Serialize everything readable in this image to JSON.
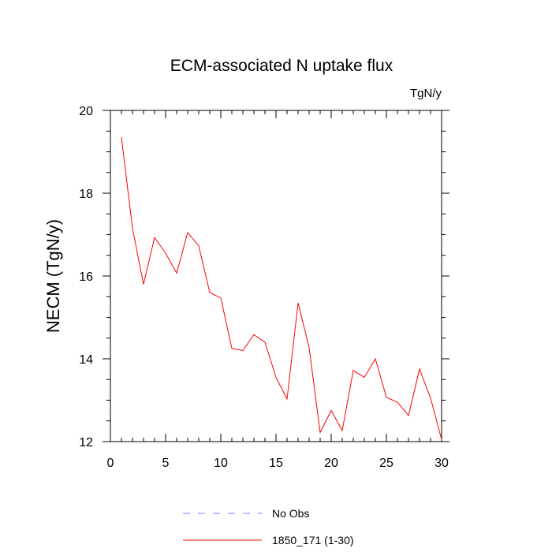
{
  "chart_data": {
    "type": "line",
    "title": "ECM-associated N uptake flux",
    "units_label": "TgN/y",
    "xlabel": "",
    "ylabel": "NECM  (TgN/y)",
    "xlim": [
      0,
      30
    ],
    "ylim": [
      12,
      20
    ],
    "x_major_ticks": [
      0,
      5,
      10,
      15,
      20,
      25,
      30
    ],
    "x_tick_labels": [
      "0",
      "5",
      "10",
      "15",
      "20",
      "25",
      "30"
    ],
    "x_minor_ticks": [
      1,
      2,
      3,
      4,
      6,
      7,
      8,
      9,
      11,
      12,
      13,
      14,
      16,
      17,
      18,
      19,
      21,
      22,
      23,
      24,
      26,
      27,
      28,
      29
    ],
    "y_major_ticks": [
      12,
      14,
      16,
      18,
      20
    ],
    "y_tick_labels": [
      "12",
      "14",
      "16",
      "18",
      "20"
    ],
    "y_minor_ticks": [
      12.5,
      13,
      13.5,
      14.5,
      15,
      15.5,
      16.5,
      17,
      17.5,
      18.5,
      19,
      19.5
    ],
    "grid": false,
    "legend_position": "bottom-center",
    "series": [
      {
        "name": "No Obs",
        "color": "#7a7aff",
        "style": "dashed",
        "x": [],
        "values": []
      },
      {
        "name": "1850_171 (1-30)",
        "color": "#ff0000",
        "style": "solid",
        "x": [
          1,
          2,
          3,
          4,
          5,
          6,
          7,
          8,
          9,
          10,
          11,
          12,
          13,
          14,
          15,
          16,
          17,
          18,
          19,
          20,
          21,
          22,
          23,
          24,
          25,
          26,
          27,
          28,
          29,
          30
        ],
        "values": [
          19.35,
          17.15,
          15.8,
          16.93,
          16.55,
          16.07,
          17.05,
          16.73,
          15.6,
          15.47,
          14.25,
          14.2,
          14.58,
          14.4,
          13.55,
          13.03,
          15.35,
          14.27,
          12.22,
          12.75,
          12.27,
          13.72,
          13.55,
          14.0,
          13.07,
          12.95,
          12.63,
          13.75,
          13.05,
          12.05
        ]
      }
    ]
  }
}
